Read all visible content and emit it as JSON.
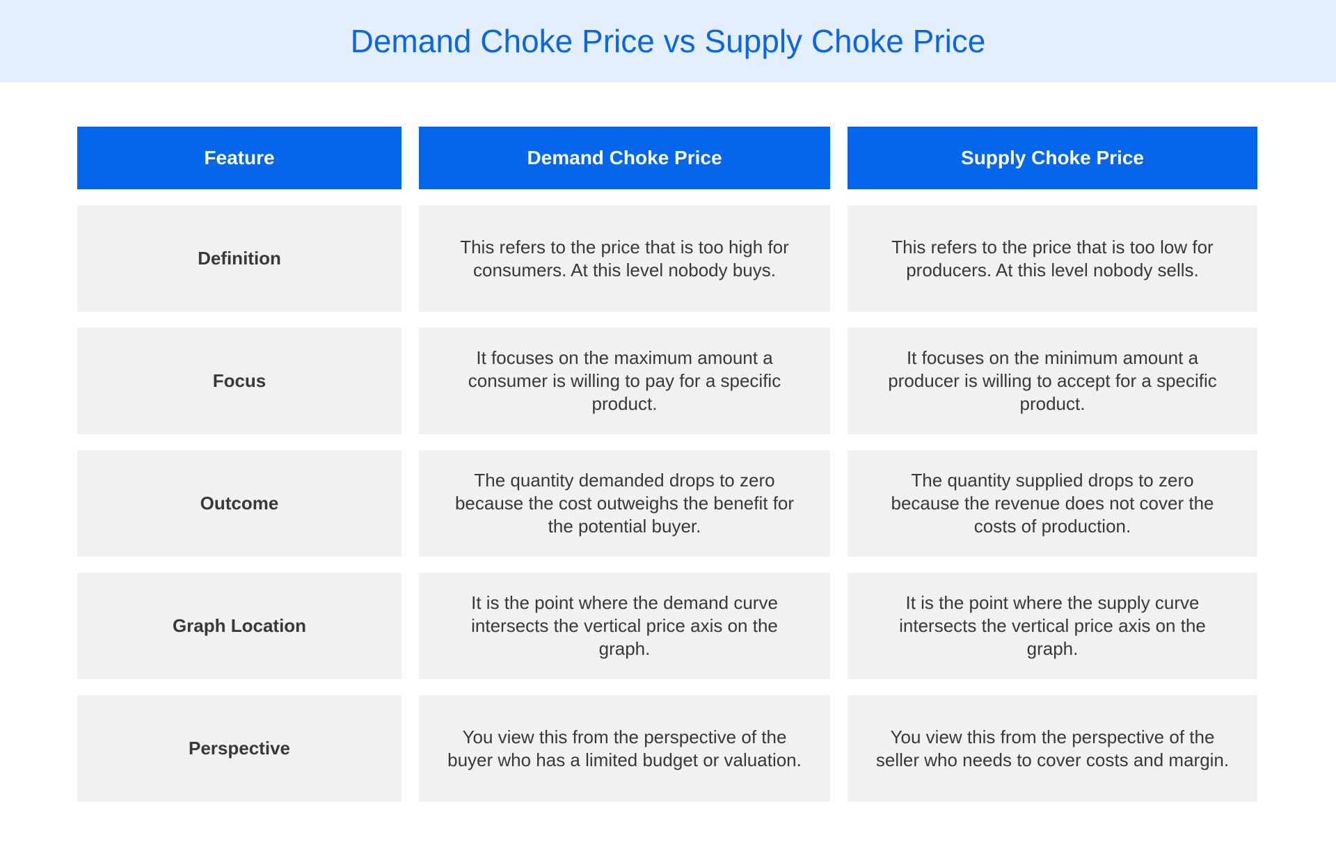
{
  "header": {
    "title": "Demand Choke Price vs Supply Choke Price"
  },
  "table": {
    "columns": [
      "Feature",
      "Demand Choke Price",
      "Supply Choke Price"
    ],
    "rows": [
      [
        "Definition",
        "This refers to the price that is too high for consumers. At this level nobody buys.",
        "This refers to the price that is too low for producers. At this level nobody sells."
      ],
      [
        "Focus",
        "It focuses on the maximum amount a consumer is willing to pay for a specific product.",
        "It focuses on the minimum amount a producer is willing to accept for a specific product."
      ],
      [
        "Outcome",
        "The quantity demanded drops to zero because the cost outweighs the benefit for the potential buyer.",
        "The quantity supplied drops to zero because the revenue does not cover the costs of production."
      ],
      [
        "Graph Location",
        "It is the point where the demand curve intersects the vertical price axis on the graph.",
        "It is the point where the supply curve intersects the vertical price axis on the graph."
      ],
      [
        "Perspective",
        "You view this from the perspective of the buyer who has a limited budget or valuation.",
        "You view this from the perspective of the seller who needs to cover costs and margin."
      ]
    ]
  }
}
